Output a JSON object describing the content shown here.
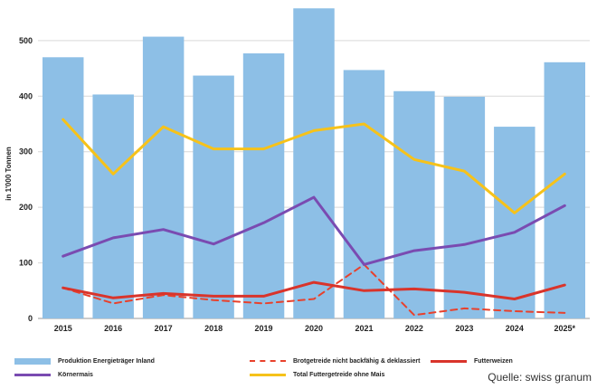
{
  "chart_data": {
    "type": "bar+line",
    "ylabel": "in 1'000 Tonnen",
    "categories": [
      "2015",
      "2016",
      "2017",
      "2018",
      "2019",
      "2020",
      "2021",
      "2022",
      "2023",
      "2024",
      "2025*"
    ],
    "ylim": [
      0,
      560
    ],
    "yticks": [
      0,
      100,
      200,
      300,
      400,
      500
    ],
    "grid": true,
    "legend_position": "bottom",
    "series": [
      {
        "name": "Produktion Energieträger Inland",
        "kind": "bar",
        "color": "#8DBFE6",
        "values": [
          470,
          403,
          507,
          437,
          477,
          558,
          447,
          409,
          399,
          345,
          461
        ]
      },
      {
        "name": "Brotgetreide nicht backfähig & deklassiert",
        "kind": "line",
        "dash": true,
        "color": "#E8412C",
        "values": [
          55,
          27,
          42,
          33,
          27,
          35,
          97,
          6,
          18,
          13,
          10
        ]
      },
      {
        "name": "Futterweizen",
        "kind": "line",
        "color": "#D9342B",
        "values": [
          55,
          37,
          45,
          40,
          40,
          65,
          50,
          53,
          47,
          35,
          60
        ]
      },
      {
        "name": "Körnermais",
        "kind": "line",
        "color": "#7A4BB1",
        "values": [
          112,
          145,
          160,
          134,
          172,
          218,
          97,
          122,
          133,
          155,
          203
        ]
      },
      {
        "name": "Total Futtergetreide ohne Mais",
        "kind": "line",
        "color": "#F6C21A",
        "values": [
          358,
          260,
          345,
          305,
          305,
          338,
          350,
          286,
          265,
          190,
          260
        ]
      }
    ]
  },
  "source": "Quelle: swiss granum"
}
